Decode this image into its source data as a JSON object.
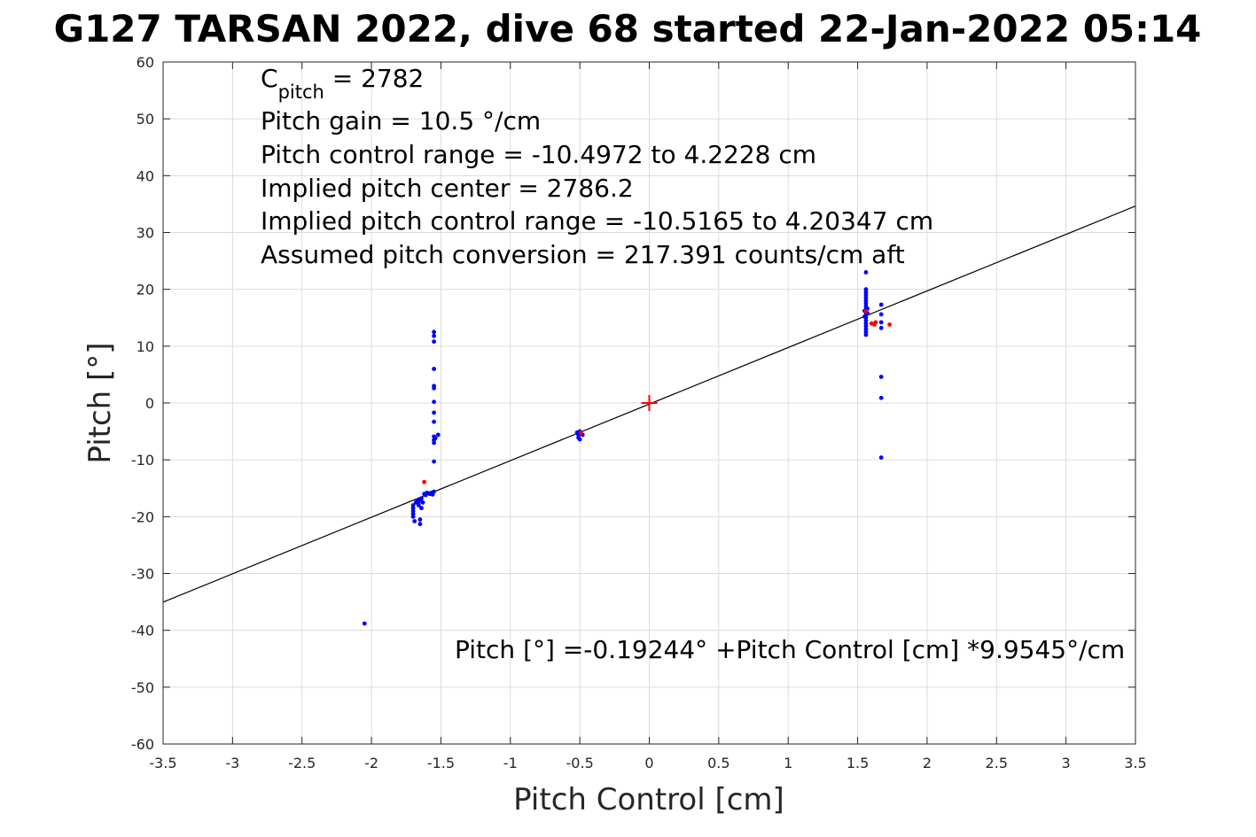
{
  "chart_data": {
    "type": "scatter",
    "title": "G127 TARSAN 2022, dive 68 started 22-Jan-2022 05:14",
    "xlabel": "Pitch Control [cm]",
    "ylabel": "Pitch [°]",
    "xlim": [
      -3.5,
      3.5
    ],
    "ylim": [
      -60,
      60
    ],
    "x_ticks": [
      "-3.5",
      "-3",
      "-2.5",
      "-2",
      "-1.5",
      "-1",
      "-0.5",
      "0",
      "0.5",
      "1",
      "1.5",
      "2",
      "2.5",
      "3",
      "3.5"
    ],
    "y_ticks": [
      "60",
      "50",
      "40",
      "30",
      "20",
      "10",
      "0",
      "-10",
      "-20",
      "-30",
      "-40",
      "-50",
      "-60"
    ],
    "grid": true,
    "annotations": {
      "c_pitch_symbol": "C",
      "c_pitch_subscript": "pitch",
      "c_pitch_value": " = 2782",
      "lines": [
        "Pitch gain = 10.5 °/cm",
        "Pitch control range = -10.4972 to 4.2228 cm",
        "Implied pitch center = 2786.2",
        "Implied pitch control range = -10.5165 to 4.20347 cm",
        "Assumed pitch conversion = 217.391 counts/cm aft"
      ],
      "fit_equation": "Pitch [°] =-0.19244° +Pitch Control [cm] *9.9545°/cm"
    },
    "fit_line": {
      "intercept": -0.19244,
      "slope": 9.9545,
      "color": "#000000"
    },
    "center_marker": {
      "x": 0,
      "y": 0,
      "color": "#ff0000"
    },
    "series": [
      {
        "color": "#0000ff",
        "points": [
          [
            -2.05,
            -38.8
          ],
          [
            -1.7,
            -18.5
          ],
          [
            -1.7,
            -19.0
          ],
          [
            -1.7,
            -19.5
          ],
          [
            -1.7,
            -20.0
          ],
          [
            -1.7,
            -18.0
          ],
          [
            -1.69,
            -20.8
          ],
          [
            -1.68,
            -17.5
          ],
          [
            -1.67,
            -17.2
          ],
          [
            -1.66,
            -17.5
          ],
          [
            -1.66,
            -18.0
          ],
          [
            -1.65,
            -17.0
          ],
          [
            -1.65,
            -20.5
          ],
          [
            -1.65,
            -21.3
          ],
          [
            -1.64,
            -18.5
          ],
          [
            -1.64,
            -16.8
          ],
          [
            -1.63,
            -17.5
          ],
          [
            -1.62,
            -16.0
          ],
          [
            -1.61,
            -16.2
          ],
          [
            -1.6,
            -15.8
          ],
          [
            -1.58,
            -16.0
          ],
          [
            -1.57,
            -15.8
          ],
          [
            -1.56,
            -16.1
          ],
          [
            -1.55,
            -15.6
          ],
          [
            -1.55,
            12.5
          ],
          [
            -1.55,
            11.8
          ],
          [
            -1.55,
            10.8
          ],
          [
            -1.55,
            6.0
          ],
          [
            -1.55,
            3.0
          ],
          [
            -1.55,
            2.6
          ],
          [
            -1.55,
            0.2
          ],
          [
            -1.55,
            -1.7
          ],
          [
            -1.55,
            -3.3
          ],
          [
            -1.55,
            -5.9
          ],
          [
            -1.55,
            -6.5
          ],
          [
            -1.55,
            -7.0
          ],
          [
            -1.55,
            -10.3
          ],
          [
            -1.54,
            -6.2
          ],
          [
            -1.52,
            -5.6
          ],
          [
            -0.52,
            -5.2
          ],
          [
            -0.51,
            -5.6
          ],
          [
            -0.51,
            -6.1
          ],
          [
            -0.5,
            -6.4
          ],
          [
            -0.5,
            -5.0
          ],
          [
            -0.48,
            -5.6
          ],
          [
            1.56,
            23.0
          ],
          [
            1.56,
            20.0
          ],
          [
            1.56,
            19.5
          ],
          [
            1.56,
            19.0
          ],
          [
            1.56,
            18.5
          ],
          [
            1.56,
            18.0
          ],
          [
            1.56,
            17.5
          ],
          [
            1.56,
            17.0
          ],
          [
            1.56,
            16.5
          ],
          [
            1.56,
            16.0
          ],
          [
            1.56,
            15.5
          ],
          [
            1.56,
            15.0
          ],
          [
            1.56,
            14.5
          ],
          [
            1.56,
            14.0
          ],
          [
            1.56,
            13.5
          ],
          [
            1.56,
            13.0
          ],
          [
            1.56,
            12.5
          ],
          [
            1.56,
            12.0
          ],
          [
            1.55,
            16.2
          ],
          [
            1.57,
            15.8
          ],
          [
            1.55,
            15.2
          ],
          [
            1.57,
            16.6
          ],
          [
            1.67,
            17.3
          ],
          [
            1.67,
            15.6
          ],
          [
            1.67,
            14.2
          ],
          [
            1.67,
            13.2
          ],
          [
            1.67,
            4.6
          ],
          [
            1.67,
            0.9
          ],
          [
            1.67,
            -9.6
          ]
        ]
      },
      {
        "color": "#ff0000",
        "points": [
          [
            -1.62,
            -13.9
          ],
          [
            -0.49,
            -5.2
          ],
          [
            1.56,
            16.2
          ],
          [
            1.6,
            14.0
          ],
          [
            1.62,
            13.8
          ],
          [
            1.63,
            14.2
          ],
          [
            1.73,
            13.8
          ]
        ]
      }
    ]
  }
}
